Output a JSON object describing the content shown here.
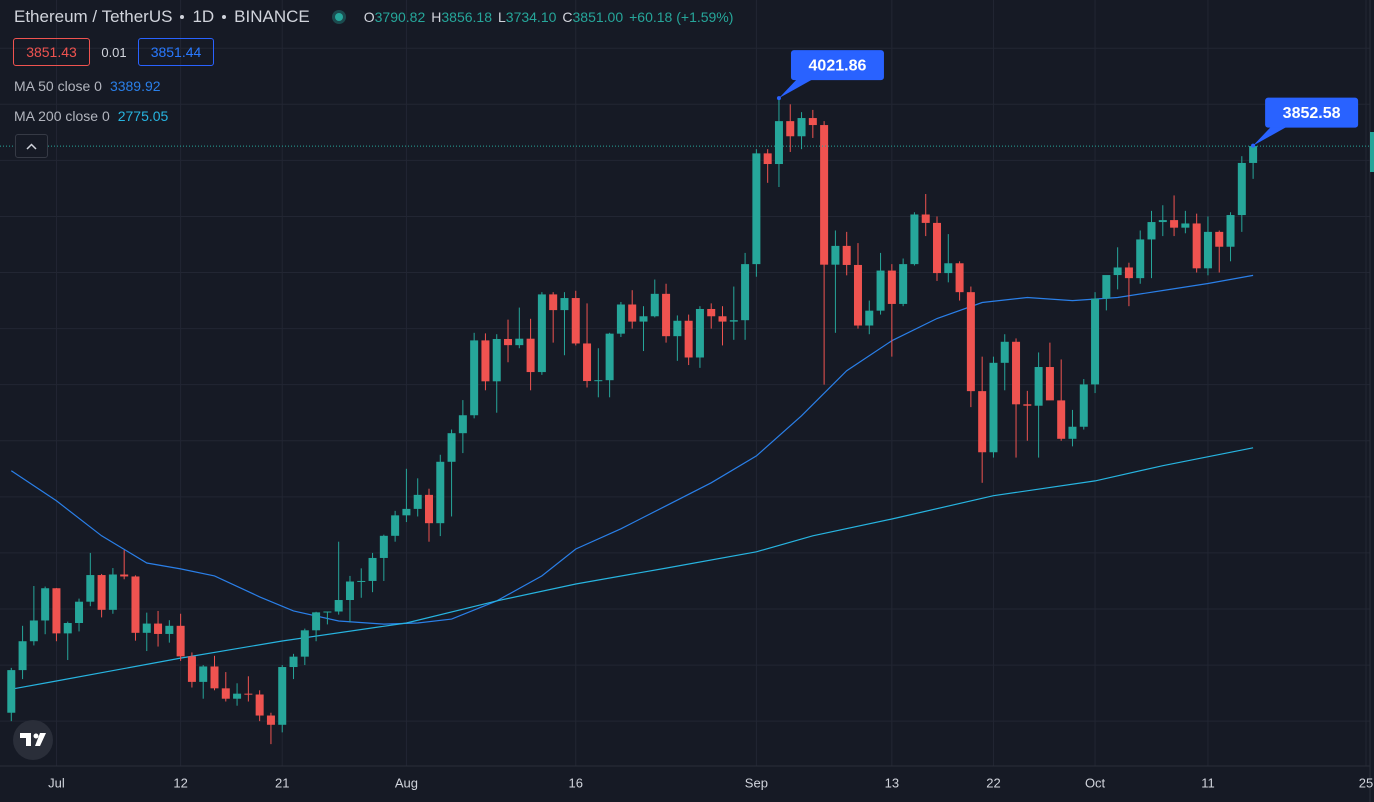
{
  "header": {
    "symbol": "Ethereum / TetherUS",
    "interval": "1D",
    "exchange": "BINANCE",
    "ohlc": [
      {
        "label": "O",
        "value": "3790.82"
      },
      {
        "label": "H",
        "value": "3856.18"
      },
      {
        "label": "L",
        "value": "3734.10"
      },
      {
        "label": "C",
        "value": "3851.00"
      }
    ],
    "change": "+60.18 (+1.59%)",
    "bid": "3851.43",
    "spread": "0.01",
    "ask": "3851.44"
  },
  "chart_data": {
    "type": "candlestick",
    "up_color": "#26a69a",
    "down_color": "#ef5350",
    "x": [
      "Jun 27",
      "Jun 28",
      "Jun 29",
      "Jun 30",
      "Jul 1",
      "Jul 2",
      "Jul 3",
      "Jul 4",
      "Jul 5",
      "Jul 6",
      "Jul 7",
      "Jul 8",
      "Jul 9",
      "Jul 10",
      "Jul 11",
      "Jul 12",
      "Jul 13",
      "Jul 14",
      "Jul 15",
      "Jul 16",
      "Jul 17",
      "Jul 18",
      "Jul 19",
      "Jul 20",
      "Jul 21",
      "Jul 22",
      "Jul 23",
      "Jul 24",
      "Jul 25",
      "Jul 26",
      "Jul 27",
      "Jul 28",
      "Jul 29",
      "Jul 30",
      "Jul 31",
      "Aug 1",
      "Aug 2",
      "Aug 3",
      "Aug 4",
      "Aug 5",
      "Aug 6",
      "Aug 7",
      "Aug 8",
      "Aug 9",
      "Aug 10",
      "Aug 11",
      "Aug 12",
      "Aug 13",
      "Aug 14",
      "Aug 15",
      "Aug 16",
      "Aug 17",
      "Aug 18",
      "Aug 19",
      "Aug 20",
      "Aug 21",
      "Aug 22",
      "Aug 23",
      "Aug 24",
      "Aug 25",
      "Aug 26",
      "Aug 27",
      "Aug 28",
      "Aug 29",
      "Aug 30",
      "Aug 31",
      "Sep 1",
      "Sep 2",
      "Sep 3",
      "Sep 4",
      "Sep 5",
      "Sep 6",
      "Sep 7",
      "Sep 8",
      "Sep 9",
      "Sep 10",
      "Sep 11",
      "Sep 12",
      "Sep 13",
      "Sep 14",
      "Sep 15",
      "Sep 16",
      "Sep 17",
      "Sep 18",
      "Sep 19",
      "Sep 20",
      "Sep 21",
      "Sep 22",
      "Sep 23",
      "Sep 24",
      "Sep 25",
      "Sep 26",
      "Sep 27",
      "Sep 28",
      "Sep 29",
      "Sep 30",
      "Oct 1",
      "Oct 2",
      "Oct 3",
      "Oct 4",
      "Oct 5",
      "Oct 6",
      "Oct 7",
      "Oct 8",
      "Oct 9",
      "Oct 10",
      "Oct 11",
      "Oct 12",
      "Oct 13",
      "Oct 14",
      "Oct 15"
    ],
    "open": [
      1830,
      1982,
      2085,
      2159,
      2274,
      2113,
      2150,
      2226,
      2321,
      2197,
      2323,
      2316,
      2115,
      2148,
      2111,
      2140,
      2031,
      1940,
      1995,
      1917,
      1880,
      1898,
      1895,
      1820,
      1787,
      1993,
      2030,
      2124,
      2188,
      2191,
      2232,
      2298,
      2300,
      2382,
      2461,
      2534,
      2557,
      2607,
      2506,
      2725,
      2827,
      2891,
      3158,
      3012,
      3163,
      3141,
      3164,
      3045,
      3322,
      3266,
      3309,
      3147,
      3013,
      3016,
      3182,
      3286,
      3225,
      3244,
      3324,
      3173,
      3228,
      3097,
      3270,
      3244,
      3225,
      3230,
      3430,
      3825,
      3787,
      3940,
      3886,
      3951,
      3926,
      3428,
      3495,
      3427,
      3211,
      3264,
      3407,
      3288,
      3430,
      3607,
      3577,
      3398,
      3433,
      3330,
      2977,
      2759,
      3078,
      3153,
      2930,
      2925,
      3063,
      2944,
      2807,
      2850,
      3001,
      3307,
      3391,
      3418,
      3380,
      3518,
      3580,
      3587,
      3560,
      3575,
      3415,
      3545,
      3492,
      3605,
      3790.82
    ],
    "high": [
      1990,
      2140,
      2282,
      2280,
      2275,
      2155,
      2237,
      2400,
      2325,
      2346,
      2410,
      2320,
      2187,
      2193,
      2160,
      2183,
      2045,
      2000,
      2033,
      1975,
      1935,
      1960,
      1910,
      1830,
      2000,
      2040,
      2130,
      2190,
      2190,
      2440,
      2318,
      2345,
      2400,
      2465,
      2550,
      2700,
      2666,
      2629,
      2750,
      2840,
      2945,
      3185,
      3183,
      3180,
      3232,
      3275,
      3235,
      3330,
      3330,
      3330,
      3335,
      3290,
      3130,
      3185,
      3295,
      3337,
      3280,
      3375,
      3360,
      3247,
      3250,
      3280,
      3290,
      3280,
      3350,
      3470,
      3840,
      3840,
      4021.86,
      4000,
      3972,
      3980,
      3940,
      3550,
      3545,
      3505,
      3300,
      3470,
      3430,
      3450,
      3615,
      3680,
      3600,
      3537,
      3440,
      3350,
      3100,
      3100,
      3180,
      3165,
      2978,
      3115,
      3150,
      3090,
      2910,
      3020,
      3330,
      3380,
      3490,
      3435,
      3550,
      3620,
      3640,
      3675,
      3620,
      3610,
      3600,
      3550,
      3615,
      3815,
      3856.18
    ],
    "low": [
      1800,
      1950,
      2070,
      2110,
      2085,
      2018,
      2120,
      2210,
      2170,
      2183,
      2306,
      2087,
      2050,
      2066,
      2080,
      2015,
      1920,
      1880,
      1910,
      1870,
      1855,
      1870,
      1800,
      1718,
      1760,
      1950,
      2000,
      2085,
      2145,
      2180,
      2152,
      2240,
      2260,
      2300,
      2440,
      2510,
      2530,
      2440,
      2460,
      2530,
      2756,
      2880,
      2980,
      2900,
      3080,
      3130,
      2980,
      3035,
      3150,
      3105,
      3140,
      2990,
      2955,
      2955,
      3170,
      3200,
      3120,
      3240,
      3150,
      3085,
      3070,
      3060,
      3200,
      3140,
      3160,
      3160,
      3385,
      3720,
      3705,
      3830,
      3840,
      3880,
      3000,
      3185,
      3390,
      3200,
      3180,
      3250,
      3100,
      3280,
      3425,
      3530,
      3370,
      3365,
      3300,
      2920,
      2650,
      2740,
      2980,
      2740,
      2800,
      2740,
      2960,
      2800,
      2780,
      2840,
      2970,
      3265,
      3340,
      3280,
      3360,
      3380,
      3530,
      3530,
      3540,
      3400,
      3390,
      3400,
      3440,
      3545,
      3734.1
    ],
    "close": [
      1982,
      2085,
      2159,
      2274,
      2113,
      2150,
      2226,
      2321,
      2197,
      2323,
      2316,
      2115,
      2148,
      2111,
      2140,
      2031,
      1940,
      1995,
      1917,
      1880,
      1898,
      1895,
      1820,
      1787,
      1993,
      2030,
      2124,
      2188,
      2191,
      2232,
      2298,
      2300,
      2382,
      2461,
      2534,
      2557,
      2607,
      2506,
      2725,
      2827,
      2891,
      3158,
      3012,
      3163,
      3141,
      3164,
      3045,
      3322,
      3266,
      3309,
      3147,
      3013,
      3016,
      3182,
      3286,
      3225,
      3244,
      3324,
      3173,
      3228,
      3097,
      3270,
      3244,
      3225,
      3230,
      3430,
      3825,
      3787,
      3940,
      3886,
      3951,
      3926,
      3428,
      3495,
      3427,
      3211,
      3264,
      3407,
      3288,
      3430,
      3607,
      3577,
      3398,
      3433,
      3330,
      2977,
      2759,
      3078,
      3153,
      2930,
      2925,
      3063,
      2944,
      2807,
      2850,
      3001,
      3307,
      3391,
      3418,
      3380,
      3518,
      3580,
      3587,
      3560,
      3575,
      3415,
      3545,
      3492,
      3605,
      3790.82,
      3851
    ],
    "lines": [
      {
        "name": "MA 50 close 0",
        "color": "#2a7fe8",
        "x": [
          "Jun 27",
          "Jul 1",
          "Jul 5",
          "Jul 9",
          "Jul 12",
          "Jul 15",
          "Jul 19",
          "Jul 22",
          "Jul 26",
          "Jul 30",
          "Aug 2",
          "Aug 5",
          "Aug 9",
          "Aug 13",
          "Aug 16",
          "Aug 20",
          "Aug 24",
          "Aug 28",
          "Sep 1",
          "Sep 5",
          "Sep 9",
          "Sep 13",
          "Sep 17",
          "Sep 21",
          "Sep 25",
          "Sep 29",
          "Oct 3",
          "Oct 7",
          "Oct 11",
          "Oct 15"
        ],
        "values": [
          2693,
          2586,
          2461,
          2364,
          2343,
          2318,
          2243,
          2193,
          2157,
          2146,
          2150,
          2164,
          2229,
          2318,
          2414,
          2486,
          2568,
          2650,
          2746,
          2889,
          3050,
          3157,
          3236,
          3293,
          3311,
          3300,
          3311,
          3336,
          3361,
          3389.92
        ]
      },
      {
        "name": "MA 200 close 0",
        "color": "#27b4e0",
        "x": [
          "Jun 27",
          "Jul 1",
          "Jul 12",
          "Jul 21",
          "Aug 1",
          "Aug 9",
          "Aug 16",
          "Aug 24",
          "Sep 1",
          "Sep 6",
          "Sep 13",
          "Sep 22",
          "Oct 1",
          "Oct 7",
          "Oct 15"
        ],
        "values": [
          1914,
          1943,
          2025,
          2086,
          2150,
          2229,
          2289,
          2346,
          2404,
          2461,
          2521,
          2604,
          2657,
          2711,
          2775.05
        ]
      }
    ],
    "annotations": [
      {
        "x": "Sep 3",
        "value": 4021.86
      },
      {
        "x": "Oct 15",
        "value": 3852.58
      }
    ],
    "annotation_color": "#2962ff",
    "xlim": [
      "Jun 26",
      "Oct 25"
    ],
    "ylim": [
      1640,
      4372
    ],
    "xticks": [
      {
        "value": "Jul 1",
        "label": "Jul"
      },
      {
        "value": "Jul 12",
        "label": "12"
      },
      {
        "value": "Jul 21",
        "label": "21"
      },
      {
        "value": "Aug 1",
        "label": "Aug"
      },
      {
        "value": "Aug 16",
        "label": "16"
      },
      {
        "value": "Sep 1",
        "label": "Sep"
      },
      {
        "value": "Sep 13",
        "label": "13"
      },
      {
        "value": "Sep 22",
        "label": "22"
      },
      {
        "value": "Oct 1",
        "label": "Oct"
      },
      {
        "value": "Oct 11",
        "label": "11"
      },
      {
        "value": "Oct 25",
        "label": "25"
      }
    ],
    "ygrid": [
      1800,
      2000,
      2200,
      2400,
      2600,
      2800,
      3000,
      3200,
      3400,
      3600,
      3800,
      4000,
      4200
    ],
    "grid": true
  }
}
